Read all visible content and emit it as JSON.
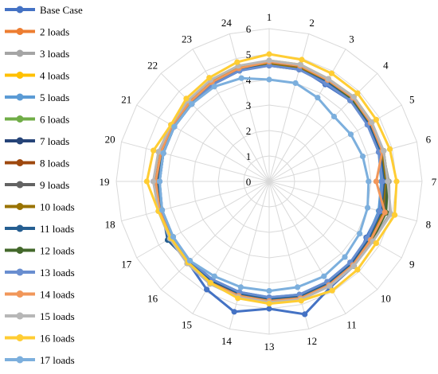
{
  "chart_data": {
    "type": "radar",
    "categories": [
      "1",
      "2",
      "3",
      "4",
      "5",
      "6",
      "7",
      "8",
      "9",
      "10",
      "11",
      "12",
      "13",
      "14",
      "15",
      "16",
      "17",
      "18",
      "19",
      "20",
      "21",
      "22",
      "23",
      "24"
    ],
    "radial_ticks": [
      "0",
      "1",
      "2",
      "3",
      "4",
      "5",
      "6"
    ],
    "rmin": 0,
    "rmax": 6,
    "legend_position": "left",
    "grid": true,
    "series": [
      {
        "name": "Base Case",
        "color": "#4472C4",
        "values": [
          4.6,
          4.6,
          4.4,
          4.5,
          4.5,
          4.6,
          4.6,
          4.5,
          4.4,
          4.7,
          4.8,
          5.4,
          5.0,
          5.3,
          4.9,
          4.5,
          4.4,
          4.4,
          4.3,
          4.3,
          4.3,
          4.3,
          4.5,
          4.6
        ]
      },
      {
        "name": "2 loads",
        "color": "#ED7D31",
        "values": [
          4.65,
          4.65,
          4.5,
          4.6,
          4.55,
          4.5,
          4.5,
          4.55,
          4.55,
          4.6,
          4.65,
          4.8,
          4.75,
          4.7,
          4.6,
          4.5,
          4.4,
          4.4,
          4.4,
          4.35,
          4.35,
          4.4,
          4.5,
          4.6
        ]
      },
      {
        "name": "3 loads",
        "color": "#A5A5A5",
        "values": [
          4.7,
          4.7,
          4.6,
          4.65,
          4.6,
          4.6,
          4.7,
          4.9,
          4.65,
          4.65,
          4.7,
          4.75,
          4.7,
          4.7,
          4.6,
          4.55,
          4.45,
          4.45,
          4.5,
          4.45,
          4.4,
          4.45,
          4.55,
          4.65
        ]
      },
      {
        "name": "4 loads",
        "color": "#FFC000",
        "values": [
          4.75,
          4.75,
          4.65,
          4.7,
          4.65,
          4.55,
          4.5,
          4.6,
          4.6,
          4.65,
          4.7,
          4.75,
          4.7,
          4.65,
          4.6,
          4.55,
          4.45,
          4.45,
          4.5,
          4.45,
          4.4,
          4.45,
          4.55,
          4.65
        ]
      },
      {
        "name": "5 loads",
        "color": "#5B9BD5",
        "values": [
          4.6,
          4.6,
          4.5,
          4.55,
          4.5,
          4.45,
          4.4,
          4.45,
          4.45,
          4.5,
          4.55,
          4.6,
          4.55,
          4.5,
          4.45,
          4.4,
          4.4,
          4.35,
          4.3,
          4.3,
          4.3,
          4.3,
          4.4,
          4.5
        ]
      },
      {
        "name": "6 loads",
        "color": "#70AD47",
        "values": [
          4.7,
          4.7,
          4.6,
          4.6,
          4.6,
          4.6,
          4.6,
          4.75,
          4.6,
          4.65,
          4.7,
          4.7,
          4.7,
          4.65,
          4.6,
          4.5,
          4.4,
          4.4,
          4.4,
          4.4,
          4.35,
          4.4,
          4.5,
          4.6
        ]
      },
      {
        "name": "7 loads",
        "color": "#264478",
        "values": [
          4.6,
          4.6,
          4.5,
          4.55,
          4.5,
          4.5,
          4.5,
          4.5,
          4.5,
          4.55,
          4.6,
          4.65,
          4.6,
          4.55,
          4.5,
          4.45,
          4.4,
          4.4,
          4.35,
          4.35,
          4.35,
          4.35,
          4.45,
          4.55
        ]
      },
      {
        "name": "8 loads",
        "color": "#9E480E",
        "values": [
          4.65,
          4.65,
          4.55,
          4.6,
          4.55,
          4.55,
          4.55,
          4.6,
          4.55,
          4.6,
          4.65,
          4.7,
          4.65,
          4.6,
          4.55,
          4.5,
          4.4,
          4.4,
          4.4,
          4.4,
          4.35,
          4.4,
          4.5,
          4.6
        ]
      },
      {
        "name": "9 loads",
        "color": "#636363",
        "values": [
          4.65,
          4.65,
          4.6,
          4.6,
          4.6,
          4.6,
          4.6,
          4.7,
          4.6,
          4.6,
          4.7,
          4.75,
          4.7,
          4.65,
          4.6,
          4.5,
          4.45,
          4.45,
          4.45,
          4.4,
          4.4,
          4.4,
          4.5,
          4.6
        ]
      },
      {
        "name": "10 loads",
        "color": "#997300",
        "values": [
          4.6,
          4.6,
          4.55,
          4.55,
          4.55,
          4.55,
          4.55,
          4.6,
          4.55,
          4.55,
          4.6,
          4.7,
          4.65,
          4.6,
          4.55,
          4.45,
          4.4,
          4.4,
          4.4,
          4.35,
          4.35,
          4.35,
          4.45,
          4.55
        ]
      },
      {
        "name": "11 loads",
        "color": "#255E91",
        "values": [
          4.55,
          4.55,
          4.5,
          4.5,
          4.5,
          4.5,
          4.5,
          4.55,
          4.5,
          4.55,
          4.6,
          4.65,
          4.6,
          4.55,
          4.5,
          4.45,
          4.6,
          4.35,
          4.35,
          4.3,
          4.3,
          4.3,
          4.45,
          4.55
        ]
      },
      {
        "name": "12 loads",
        "color": "#43682B",
        "values": [
          4.7,
          4.7,
          4.6,
          4.6,
          4.6,
          4.65,
          4.65,
          4.75,
          4.65,
          4.7,
          4.7,
          4.75,
          4.7,
          4.65,
          4.6,
          4.5,
          4.45,
          4.45,
          4.45,
          4.4,
          4.4,
          4.4,
          4.5,
          4.6
        ]
      },
      {
        "name": "13 loads",
        "color": "#698ED0",
        "values": [
          4.55,
          4.55,
          4.45,
          4.5,
          4.45,
          4.45,
          4.45,
          4.5,
          4.45,
          4.5,
          4.55,
          4.6,
          4.55,
          4.5,
          4.45,
          4.4,
          4.35,
          4.35,
          4.3,
          4.3,
          4.3,
          4.3,
          4.4,
          4.5
        ]
      },
      {
        "name": "14 loads",
        "color": "#F1975A",
        "values": [
          4.7,
          4.7,
          4.6,
          4.65,
          4.6,
          4.6,
          4.2,
          4.7,
          4.6,
          4.65,
          4.7,
          4.75,
          4.7,
          4.65,
          4.6,
          4.5,
          4.45,
          4.45,
          4.45,
          4.4,
          4.4,
          4.4,
          4.5,
          4.6
        ]
      },
      {
        "name": "15 loads",
        "color": "#B7B7B7",
        "values": [
          4.75,
          4.75,
          4.65,
          4.7,
          4.65,
          4.65,
          4.65,
          4.95,
          4.7,
          4.7,
          4.75,
          4.8,
          4.75,
          4.7,
          4.65,
          4.55,
          4.5,
          4.5,
          4.55,
          4.5,
          4.45,
          4.5,
          4.6,
          4.7
        ]
      },
      {
        "name": "16 loads",
        "color": "#FFCD33",
        "values": [
          5.0,
          4.95,
          4.9,
          4.9,
          4.85,
          4.9,
          5.0,
          5.1,
          4.85,
          4.9,
          4.95,
          4.85,
          4.8,
          4.75,
          4.6,
          4.5,
          4.45,
          4.5,
          4.8,
          4.7,
          4.45,
          4.6,
          4.7,
          4.85
        ]
      },
      {
        "name": "17 loads",
        "color": "#7CAFDD",
        "values": [
          4.0,
          4.0,
          3.8,
          3.6,
          3.7,
          3.8,
          3.9,
          4.0,
          4.1,
          4.2,
          4.3,
          4.3,
          4.3,
          4.3,
          4.3,
          4.4,
          4.35,
          4.35,
          4.3,
          4.3,
          4.3,
          4.3,
          4.3,
          4.2
        ]
      }
    ]
  }
}
